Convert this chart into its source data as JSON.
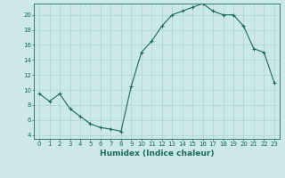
{
  "x": [
    0,
    1,
    2,
    3,
    4,
    5,
    6,
    7,
    8,
    9,
    10,
    11,
    12,
    13,
    14,
    15,
    16,
    17,
    18,
    19,
    20,
    21,
    22,
    23
  ],
  "y": [
    9.5,
    8.5,
    9.5,
    7.5,
    6.5,
    5.5,
    5.0,
    4.8,
    4.5,
    10.5,
    15.0,
    16.5,
    18.5,
    20.0,
    20.5,
    21.0,
    21.5,
    20.5,
    20.0,
    20.0,
    18.5,
    15.5,
    15.0,
    11.0
  ],
  "line_color": "#1a6b5a",
  "marker": "+",
  "marker_size": 3,
  "marker_linewidth": 0.8,
  "bg_color": "#cce8e8",
  "grid_color": "#aad4d4",
  "xlabel": "Humidex (Indice chaleur)",
  "xlim": [
    -0.5,
    23.5
  ],
  "ylim": [
    3.5,
    21.5
  ],
  "yticks": [
    4,
    6,
    8,
    10,
    12,
    14,
    16,
    18,
    20
  ],
  "xticks": [
    0,
    1,
    2,
    3,
    4,
    5,
    6,
    7,
    8,
    9,
    10,
    11,
    12,
    13,
    14,
    15,
    16,
    17,
    18,
    19,
    20,
    21,
    22,
    23
  ],
  "tick_label_fontsize": 5,
  "xlabel_fontsize": 6.5,
  "line_width": 0.8,
  "axis_color": "#1a6b5a",
  "spine_color": "#1a6b5a"
}
